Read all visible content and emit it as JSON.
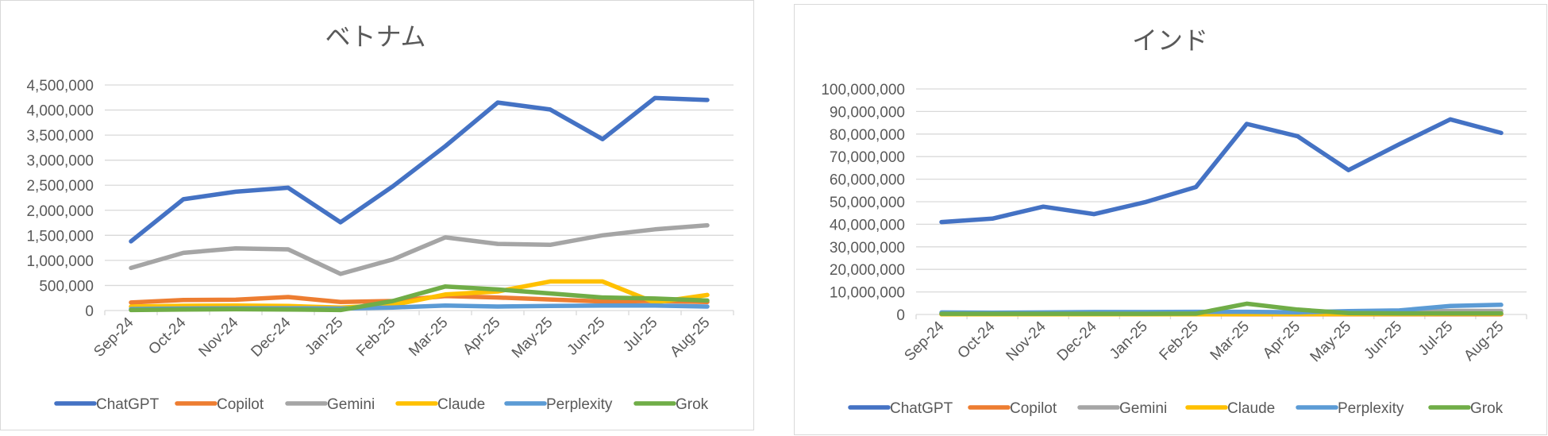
{
  "chart_data": [
    {
      "id": "vn",
      "type": "line",
      "title": "ベトナム",
      "xlabel": "",
      "ylabel": "",
      "categories": [
        "Sep-24",
        "Oct-24",
        "Nov-24",
        "Dec-24",
        "Jan-25",
        "Feb-25",
        "Mar-25",
        "Apr-25",
        "May-25",
        "Jun-25",
        "Jul-25",
        "Aug-25"
      ],
      "ylim": [
        0,
        4500000
      ],
      "yticks": [
        0,
        500000,
        1000000,
        1500000,
        2000000,
        2500000,
        3000000,
        3500000,
        4000000,
        4500000
      ],
      "ytick_labels": [
        "0",
        "500,000",
        "1,000,000",
        "1,500,000",
        "2,000,000",
        "2,500,000",
        "3,000,000",
        "3,500,000",
        "4,000,000",
        "4,500,000"
      ],
      "grid": true,
      "legend_position": "bottom",
      "series": [
        {
          "name": "ChatGPT",
          "color": "#4472C4",
          "values": [
            1380000,
            2220000,
            2370000,
            2450000,
            1760000,
            2480000,
            3280000,
            4150000,
            4010000,
            3420000,
            4240000,
            4200000
          ]
        },
        {
          "name": "Copilot",
          "color": "#ED7D31",
          "values": [
            160000,
            210000,
            215000,
            270000,
            170000,
            190000,
            290000,
            260000,
            220000,
            180000,
            190000,
            170000
          ]
        },
        {
          "name": "Gemini",
          "color": "#A5A5A5",
          "values": [
            850000,
            1150000,
            1240000,
            1220000,
            730000,
            1020000,
            1460000,
            1330000,
            1310000,
            1500000,
            1620000,
            1700000
          ]
        },
        {
          "name": "Claude",
          "color": "#FFC000",
          "values": [
            80000,
            95000,
            100000,
            90000,
            60000,
            110000,
            320000,
            380000,
            580000,
            580000,
            160000,
            310000
          ]
        },
        {
          "name": "Perplexity",
          "color": "#5B9BD5",
          "values": [
            30000,
            40000,
            45000,
            45000,
            40000,
            60000,
            100000,
            80000,
            90000,
            100000,
            100000,
            80000
          ]
        },
        {
          "name": "Grok",
          "color": "#70AD47",
          "values": [
            10000,
            20000,
            25000,
            20000,
            10000,
            190000,
            480000,
            420000,
            340000,
            260000,
            240000,
            200000
          ]
        }
      ]
    },
    {
      "id": "in",
      "type": "line",
      "title": "インド",
      "xlabel": "",
      "ylabel": "",
      "categories": [
        "Sep-24",
        "Oct-24",
        "Nov-24",
        "Dec-24",
        "Jan-25",
        "Feb-25",
        "Mar-25",
        "Apr-25",
        "May-25",
        "Jun-25",
        "Jul-25",
        "Aug-25"
      ],
      "ylim": [
        0,
        100000000
      ],
      "yticks": [
        0,
        10000000,
        20000000,
        30000000,
        40000000,
        50000000,
        60000000,
        70000000,
        80000000,
        90000000,
        100000000
      ],
      "ytick_labels": [
        "0",
        "10,000,000",
        "20,000,000",
        "30,000,000",
        "40,000,000",
        "50,000,000",
        "60,000,000",
        "70,000,000",
        "80,000,000",
        "90,000,000",
        "100,000,000"
      ],
      "grid": true,
      "legend_position": "bottom",
      "series": [
        {
          "name": "ChatGPT",
          "color": "#4472C4",
          "values": [
            41000000,
            42500000,
            47800000,
            44500000,
            49800000,
            56500000,
            84500000,
            79000000,
            64000000,
            75500000,
            86500000,
            80500000
          ]
        },
        {
          "name": "Copilot",
          "color": "#ED7D31",
          "values": [
            100000,
            100000,
            100000,
            100000,
            100000,
            100000,
            100000,
            100000,
            100000,
            100000,
            100000,
            100000
          ]
        },
        {
          "name": "Gemini",
          "color": "#A5A5A5",
          "values": [
            500000,
            500000,
            600000,
            600000,
            600000,
            700000,
            800000,
            800000,
            900000,
            1000000,
            1600000,
            1600000
          ]
        },
        {
          "name": "Claude",
          "color": "#FFC000",
          "values": [
            100000,
            100000,
            100000,
            100000,
            100000,
            100000,
            200000,
            200000,
            200000,
            200000,
            300000,
            300000
          ]
        },
        {
          "name": "Perplexity",
          "color": "#5B9BD5",
          "values": [
            900000,
            800000,
            900000,
            1100000,
            1100000,
            1200000,
            1200000,
            1000000,
            1500000,
            1800000,
            3800000,
            4300000
          ]
        },
        {
          "name": "Grok",
          "color": "#70AD47",
          "values": [
            300000,
            300000,
            300000,
            300000,
            300000,
            400000,
            4800000,
            2200000,
            600000,
            500000,
            500000,
            500000
          ]
        }
      ]
    }
  ]
}
